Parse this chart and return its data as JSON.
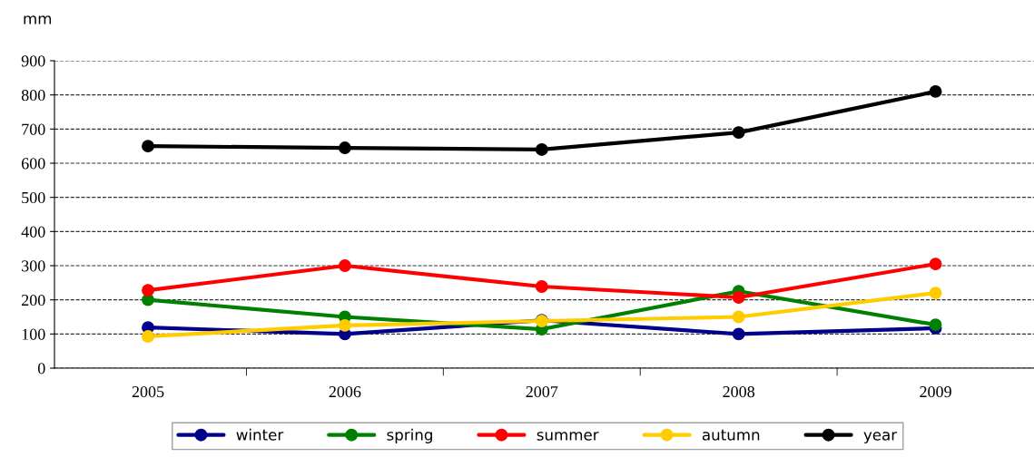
{
  "chart_data": {
    "type": "line",
    "ylabel": "mm",
    "categories": [
      "2005",
      "2006",
      "2007",
      "2008",
      "2009"
    ],
    "series": [
      {
        "name": "winter",
        "color": "#00008b",
        "values": [
          119,
          100,
          140,
          100,
          117
        ]
      },
      {
        "name": "spring",
        "color": "#008000",
        "values": [
          200,
          150,
          114,
          225,
          127
        ]
      },
      {
        "name": "summer",
        "color": "#ff0000",
        "values": [
          228,
          300,
          239,
          207,
          305
        ]
      },
      {
        "name": "autumn",
        "color": "#ffcc00",
        "values": [
          93,
          125,
          138,
          150,
          220
        ]
      },
      {
        "name": "year",
        "color": "#000000",
        "values": [
          650,
          645,
          640,
          690,
          810
        ]
      }
    ],
    "ylim": [
      0,
      900
    ],
    "yticks": [
      0,
      100,
      200,
      300,
      400,
      500,
      600,
      700,
      800,
      900
    ],
    "grid": "y",
    "legend": "bottom",
    "marker": "circle",
    "line_style": "solid"
  }
}
